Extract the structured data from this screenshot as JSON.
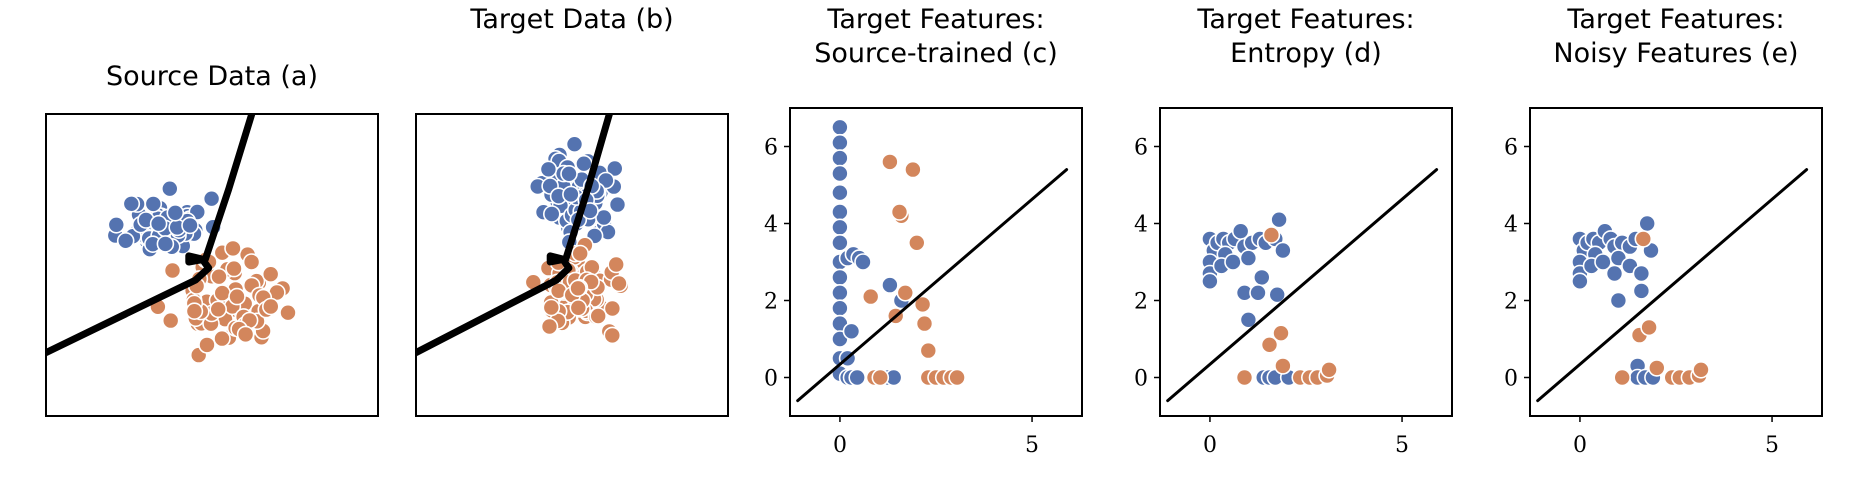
{
  "colors": {
    "blue": "#5473b0",
    "orange": "#d3865c"
  },
  "chart_data": [
    {
      "type": "scatter",
      "title": [
        "Source Data  (a)"
      ],
      "xlabel": "",
      "ylabel": "",
      "axes": false,
      "xlim": [
        0,
        10
      ],
      "ylim": [
        0,
        10
      ],
      "boundary_style": "thick",
      "boundary": [
        [
          0,
          2.1
        ],
        [
          4.5,
          4.5
        ],
        [
          4.9,
          4.9
        ],
        [
          4.7,
          5.2
        ],
        [
          4.3,
          5.3
        ],
        [
          4.3,
          5.1
        ],
        [
          4.8,
          5.2
        ],
        [
          5.5,
          7.5
        ],
        [
          6.2,
          10
        ]
      ],
      "clusters": [
        {
          "color": "blue",
          "cx": 3.6,
          "cy": 6.3,
          "sx": 0.6,
          "sy": 0.45,
          "n": 70,
          "seed": 11
        },
        {
          "color": "orange",
          "cx": 5.4,
          "cy": 3.8,
          "sx": 0.75,
          "sy": 0.7,
          "n": 75,
          "seed": 23
        }
      ]
    },
    {
      "type": "scatter",
      "title": [
        "Target Data (b)"
      ],
      "xlabel": "",
      "ylabel": "",
      "axes": false,
      "xlim": [
        0,
        10
      ],
      "ylim": [
        0,
        10
      ],
      "boundary_style": "thick",
      "boundary": [
        [
          0,
          2.1
        ],
        [
          4.5,
          4.5
        ],
        [
          4.9,
          4.9
        ],
        [
          4.7,
          5.2
        ],
        [
          4.3,
          5.3
        ],
        [
          4.3,
          5.1
        ],
        [
          4.8,
          5.2
        ],
        [
          5.5,
          7.5
        ],
        [
          6.2,
          10
        ]
      ],
      "clusters": [
        {
          "color": "blue",
          "cx": 5.2,
          "cy": 7.3,
          "sx": 0.55,
          "sy": 0.7,
          "n": 70,
          "seed": 37
        },
        {
          "color": "orange",
          "cx": 5.4,
          "cy": 4.2,
          "sx": 0.7,
          "sy": 0.6,
          "n": 75,
          "seed": 41
        }
      ]
    },
    {
      "type": "scatter",
      "title": [
        "Target Features:",
        "Source-trained (c)"
      ],
      "xlabel": "",
      "ylabel": "",
      "axes": true,
      "xlim": [
        -1.3,
        6.3
      ],
      "ylim": [
        -1.0,
        7.0
      ],
      "xticks": [
        0,
        5
      ],
      "yticks": [
        0,
        2,
        4,
        6
      ],
      "boundary_style": "thin",
      "boundary": [
        [
          -1.1,
          -0.6
        ],
        [
          5.9,
          5.4
        ]
      ],
      "points": [
        {
          "x": 0.0,
          "y": 6.5,
          "c": "blue"
        },
        {
          "x": 0.0,
          "y": 6.1,
          "c": "blue"
        },
        {
          "x": 0.0,
          "y": 5.7,
          "c": "blue"
        },
        {
          "x": 0.0,
          "y": 5.3,
          "c": "blue"
        },
        {
          "x": 0.0,
          "y": 4.8,
          "c": "blue"
        },
        {
          "x": 0.0,
          "y": 4.3,
          "c": "blue"
        },
        {
          "x": 0.0,
          "y": 3.9,
          "c": "blue"
        },
        {
          "x": 0.0,
          "y": 3.5,
          "c": "blue"
        },
        {
          "x": 0.0,
          "y": 3.0,
          "c": "blue"
        },
        {
          "x": 0.0,
          "y": 2.6,
          "c": "blue"
        },
        {
          "x": 0.0,
          "y": 2.2,
          "c": "blue"
        },
        {
          "x": 0.0,
          "y": 1.8,
          "c": "blue"
        },
        {
          "x": 0.0,
          "y": 1.4,
          "c": "blue"
        },
        {
          "x": 0.0,
          "y": 1.0,
          "c": "blue"
        },
        {
          "x": 0.0,
          "y": 0.5,
          "c": "blue"
        },
        {
          "x": 0.0,
          "y": 0.1,
          "c": "blue"
        },
        {
          "x": 0.2,
          "y": 3.1,
          "c": "blue"
        },
        {
          "x": 0.35,
          "y": 3.2,
          "c": "blue"
        },
        {
          "x": 0.5,
          "y": 3.1,
          "c": "blue"
        },
        {
          "x": 0.6,
          "y": 3.0,
          "c": "blue"
        },
        {
          "x": 0.3,
          "y": 1.2,
          "c": "blue"
        },
        {
          "x": 0.2,
          "y": 0.5,
          "c": "blue"
        },
        {
          "x": 1.3,
          "y": 2.4,
          "c": "blue"
        },
        {
          "x": 1.6,
          "y": 2.0,
          "c": "blue"
        },
        {
          "x": 0.2,
          "y": 0.0,
          "c": "blue"
        },
        {
          "x": 0.3,
          "y": 0.0,
          "c": "blue"
        },
        {
          "x": 0.45,
          "y": 0.0,
          "c": "blue"
        },
        {
          "x": 1.1,
          "y": 0.0,
          "c": "blue"
        },
        {
          "x": 1.25,
          "y": 0.0,
          "c": "blue"
        },
        {
          "x": 1.4,
          "y": 0.0,
          "c": "blue"
        },
        {
          "x": 1.3,
          "y": 5.6,
          "c": "orange"
        },
        {
          "x": 1.9,
          "y": 5.4,
          "c": "orange"
        },
        {
          "x": 1.6,
          "y": 4.2,
          "c": "orange"
        },
        {
          "x": 1.55,
          "y": 4.3,
          "c": "orange"
        },
        {
          "x": 2.0,
          "y": 3.5,
          "c": "orange"
        },
        {
          "x": 0.8,
          "y": 2.1,
          "c": "orange"
        },
        {
          "x": 1.7,
          "y": 2.2,
          "c": "orange"
        },
        {
          "x": 1.45,
          "y": 1.6,
          "c": "orange"
        },
        {
          "x": 2.2,
          "y": 1.4,
          "c": "orange"
        },
        {
          "x": 2.15,
          "y": 1.9,
          "c": "orange"
        },
        {
          "x": 2.3,
          "y": 0.7,
          "c": "orange"
        },
        {
          "x": 0.9,
          "y": 0.0,
          "c": "orange"
        },
        {
          "x": 1.05,
          "y": 0.0,
          "c": "orange"
        },
        {
          "x": 2.3,
          "y": 0.0,
          "c": "orange"
        },
        {
          "x": 2.5,
          "y": 0.0,
          "c": "orange"
        },
        {
          "x": 2.7,
          "y": 0.0,
          "c": "orange"
        },
        {
          "x": 2.9,
          "y": 0.0,
          "c": "orange"
        },
        {
          "x": 3.05,
          "y": 0.0,
          "c": "orange"
        }
      ]
    },
    {
      "type": "scatter",
      "title": [
        "Target Features:",
        "Entropy (d)"
      ],
      "xlabel": "",
      "ylabel": "",
      "axes": true,
      "xlim": [
        -1.3,
        6.3
      ],
      "ylim": [
        -1.0,
        7.0
      ],
      "xticks": [
        0,
        5
      ],
      "yticks": [
        0,
        2,
        4,
        6
      ],
      "boundary_style": "thin",
      "boundary": [
        [
          -1.1,
          -0.6
        ],
        [
          5.9,
          5.4
        ]
      ],
      "points": [
        {
          "x": 0.0,
          "y": 3.6,
          "c": "blue"
        },
        {
          "x": 0.1,
          "y": 3.3,
          "c": "blue"
        },
        {
          "x": 0.0,
          "y": 3.0,
          "c": "blue"
        },
        {
          "x": 0.0,
          "y": 2.7,
          "c": "blue"
        },
        {
          "x": 0.0,
          "y": 2.5,
          "c": "blue"
        },
        {
          "x": 0.2,
          "y": 3.5,
          "c": "blue"
        },
        {
          "x": 0.35,
          "y": 3.6,
          "c": "blue"
        },
        {
          "x": 0.5,
          "y": 3.5,
          "c": "blue"
        },
        {
          "x": 0.65,
          "y": 3.6,
          "c": "blue"
        },
        {
          "x": 0.8,
          "y": 3.8,
          "c": "blue"
        },
        {
          "x": 0.4,
          "y": 3.2,
          "c": "blue"
        },
        {
          "x": 0.3,
          "y": 2.9,
          "c": "blue"
        },
        {
          "x": 0.6,
          "y": 3.0,
          "c": "blue"
        },
        {
          "x": 0.9,
          "y": 3.4,
          "c": "blue"
        },
        {
          "x": 1.1,
          "y": 3.5,
          "c": "blue"
        },
        {
          "x": 1.0,
          "y": 3.1,
          "c": "blue"
        },
        {
          "x": 1.3,
          "y": 3.6,
          "c": "blue"
        },
        {
          "x": 1.45,
          "y": 3.5,
          "c": "blue"
        },
        {
          "x": 1.7,
          "y": 3.6,
          "c": "blue"
        },
        {
          "x": 1.8,
          "y": 4.1,
          "c": "blue"
        },
        {
          "x": 1.9,
          "y": 3.3,
          "c": "blue"
        },
        {
          "x": 0.9,
          "y": 2.2,
          "c": "blue"
        },
        {
          "x": 1.35,
          "y": 2.6,
          "c": "blue"
        },
        {
          "x": 1.25,
          "y": 2.2,
          "c": "blue"
        },
        {
          "x": 1.75,
          "y": 2.15,
          "c": "blue"
        },
        {
          "x": 1.0,
          "y": 1.5,
          "c": "blue"
        },
        {
          "x": 1.4,
          "y": 0.0,
          "c": "blue"
        },
        {
          "x": 1.55,
          "y": 0.0,
          "c": "blue"
        },
        {
          "x": 1.7,
          "y": 0.0,
          "c": "blue"
        },
        {
          "x": 2.05,
          "y": 0.0,
          "c": "blue"
        },
        {
          "x": 1.6,
          "y": 3.7,
          "c": "orange"
        },
        {
          "x": 1.85,
          "y": 1.15,
          "c": "orange"
        },
        {
          "x": 1.55,
          "y": 0.85,
          "c": "orange"
        },
        {
          "x": 0.9,
          "y": 0.0,
          "c": "orange"
        },
        {
          "x": 1.9,
          "y": 0.3,
          "c": "orange"
        },
        {
          "x": 2.35,
          "y": 0.0,
          "c": "orange"
        },
        {
          "x": 2.6,
          "y": 0.0,
          "c": "orange"
        },
        {
          "x": 2.8,
          "y": 0.0,
          "c": "orange"
        },
        {
          "x": 3.05,
          "y": 0.05,
          "c": "orange"
        },
        {
          "x": 3.1,
          "y": 0.2,
          "c": "orange"
        }
      ]
    },
    {
      "type": "scatter",
      "title": [
        "Target Features:",
        "Noisy Features (e)"
      ],
      "xlabel": "",
      "ylabel": "",
      "axes": true,
      "xlim": [
        -1.3,
        6.3
      ],
      "ylim": [
        -1.0,
        7.0
      ],
      "xticks": [
        0,
        5
      ],
      "yticks": [
        0,
        2,
        4,
        6
      ],
      "boundary_style": "thin",
      "boundary": [
        [
          -1.1,
          -0.6
        ],
        [
          5.9,
          5.4
        ]
      ],
      "points": [
        {
          "x": 0.0,
          "y": 3.6,
          "c": "blue"
        },
        {
          "x": 0.1,
          "y": 3.3,
          "c": "blue"
        },
        {
          "x": 0.0,
          "y": 3.0,
          "c": "blue"
        },
        {
          "x": 0.0,
          "y": 2.7,
          "c": "blue"
        },
        {
          "x": 0.0,
          "y": 2.5,
          "c": "blue"
        },
        {
          "x": 0.2,
          "y": 3.5,
          "c": "blue"
        },
        {
          "x": 0.35,
          "y": 3.6,
          "c": "blue"
        },
        {
          "x": 0.5,
          "y": 3.5,
          "c": "blue"
        },
        {
          "x": 0.65,
          "y": 3.8,
          "c": "blue"
        },
        {
          "x": 0.8,
          "y": 3.6,
          "c": "blue"
        },
        {
          "x": 0.4,
          "y": 3.2,
          "c": "blue"
        },
        {
          "x": 0.3,
          "y": 2.9,
          "c": "blue"
        },
        {
          "x": 0.6,
          "y": 3.0,
          "c": "blue"
        },
        {
          "x": 0.9,
          "y": 3.4,
          "c": "blue"
        },
        {
          "x": 1.1,
          "y": 3.5,
          "c": "blue"
        },
        {
          "x": 1.0,
          "y": 3.1,
          "c": "blue"
        },
        {
          "x": 1.3,
          "y": 3.4,
          "c": "blue"
        },
        {
          "x": 1.45,
          "y": 3.6,
          "c": "blue"
        },
        {
          "x": 1.75,
          "y": 4.0,
          "c": "blue"
        },
        {
          "x": 1.85,
          "y": 3.3,
          "c": "blue"
        },
        {
          "x": 0.9,
          "y": 2.7,
          "c": "blue"
        },
        {
          "x": 1.3,
          "y": 2.9,
          "c": "blue"
        },
        {
          "x": 1.6,
          "y": 2.7,
          "c": "blue"
        },
        {
          "x": 1.0,
          "y": 2.0,
          "c": "blue"
        },
        {
          "x": 1.6,
          "y": 2.25,
          "c": "blue"
        },
        {
          "x": 1.5,
          "y": 0.3,
          "c": "blue"
        },
        {
          "x": 1.5,
          "y": 0.0,
          "c": "blue"
        },
        {
          "x": 1.7,
          "y": 0.0,
          "c": "blue"
        },
        {
          "x": 1.9,
          "y": 0.0,
          "c": "blue"
        },
        {
          "x": 1.65,
          "y": 3.6,
          "c": "orange"
        },
        {
          "x": 1.55,
          "y": 1.1,
          "c": "orange"
        },
        {
          "x": 1.8,
          "y": 1.3,
          "c": "orange"
        },
        {
          "x": 1.1,
          "y": 0.0,
          "c": "orange"
        },
        {
          "x": 2.0,
          "y": 0.25,
          "c": "orange"
        },
        {
          "x": 2.4,
          "y": 0.0,
          "c": "orange"
        },
        {
          "x": 2.6,
          "y": 0.0,
          "c": "orange"
        },
        {
          "x": 2.85,
          "y": 0.0,
          "c": "orange"
        },
        {
          "x": 3.1,
          "y": 0.05,
          "c": "orange"
        },
        {
          "x": 3.15,
          "y": 0.2,
          "c": "orange"
        }
      ]
    }
  ]
}
